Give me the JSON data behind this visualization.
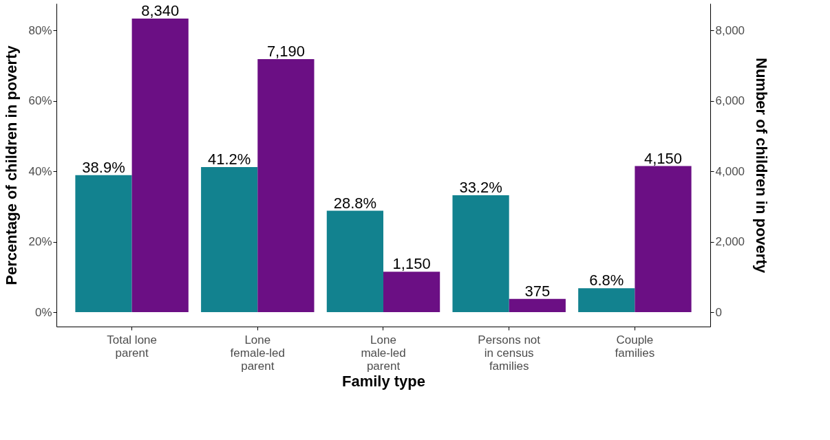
{
  "chart_data": {
    "type": "bar",
    "categories": [
      "Total lone\nparent",
      "Lone\nfemale-led\nparent",
      "Lone\nmale-led\nparent",
      "Persons not\nin census\nfamilies",
      "Couple\nfamilies"
    ],
    "xlabel": "Family type",
    "ylabel": "Percentage of children in poverty",
    "y2label": "Number of children in poverty",
    "series": [
      {
        "color": "#12828f",
        "values": [
          38.9,
          41.2,
          28.8,
          33.2,
          6.8
        ],
        "value_labels": [
          "38.9%",
          "41.2%",
          "28.8%",
          "33.2%",
          "6.8%"
        ]
      },
      {
        "color": "#6b0f84",
        "axis": "y2",
        "values": [
          8340,
          7190,
          1150,
          375,
          4150
        ],
        "value_labels": [
          "8,340",
          "7,190",
          "1,150",
          "375",
          "4,150"
        ]
      }
    ],
    "ylim": [
      -4.1,
      87.7
    ],
    "yticks": [
      {
        "value": 0,
        "label": "0%"
      },
      {
        "value": 20,
        "label": "20%"
      },
      {
        "value": 40,
        "label": "40%"
      },
      {
        "value": 60,
        "label": "60%"
      },
      {
        "value": 80,
        "label": "80%"
      }
    ],
    "y2lim": [
      -410,
      8770
    ],
    "y2ticks": [
      0,
      {
        "value": 2000,
        "label": "2,000"
      },
      {
        "value": 4000,
        "label": "4,000"
      },
      {
        "value": 6000,
        "label": "6,000"
      },
      {
        "value": 8000,
        "label": "8,000"
      }
    ],
    "grid": false
  }
}
